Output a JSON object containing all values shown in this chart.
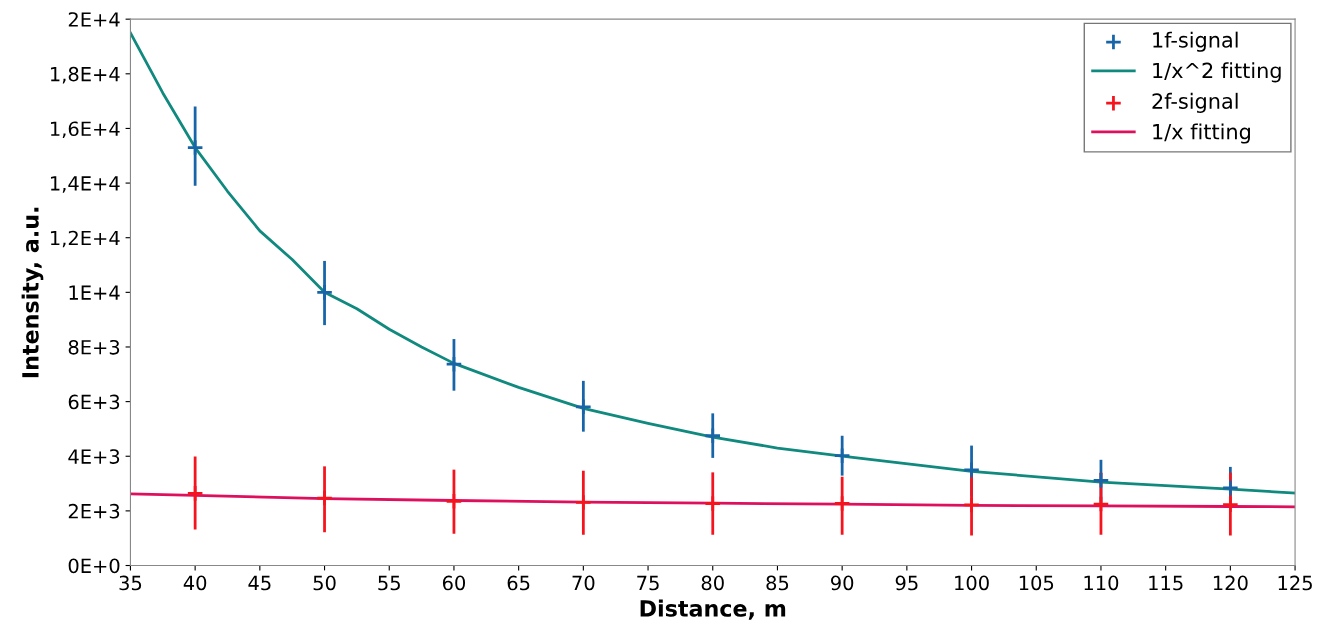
{
  "chart_data": {
    "type": "scatter",
    "xlabel": "Distance, m",
    "ylabel": "Intensity, a.u.",
    "xlim": [
      35,
      125
    ],
    "xticks": [
      35,
      40,
      45,
      50,
      55,
      60,
      65,
      70,
      75,
      80,
      85,
      90,
      95,
      100,
      105,
      110,
      115,
      120,
      125
    ],
    "ylim": [
      0,
      20000
    ],
    "yticks": [
      {
        "value": 0,
        "label": "0E+0"
      },
      {
        "value": 2000,
        "label": "2E+3"
      },
      {
        "value": 4000,
        "label": "4E+3"
      },
      {
        "value": 6000,
        "label": "6E+3"
      },
      {
        "value": 8000,
        "label": "8E+3"
      },
      {
        "value": 10000,
        "label": "1E+4"
      },
      {
        "value": 12000,
        "label": "1,2E+4"
      },
      {
        "value": 14000,
        "label": "1,4E+4"
      },
      {
        "value": 16000,
        "label": "1,6E+4"
      },
      {
        "value": 18000,
        "label": "1,8E+4"
      },
      {
        "value": 20000,
        "label": "2E+4"
      }
    ],
    "grid": false,
    "legend": "top right",
    "series": [
      {
        "name": "1f-signal",
        "marker": "cross",
        "color": "#1765a8",
        "x": [
          40,
          50,
          60,
          70,
          80,
          90,
          100,
          110,
          120
        ],
        "values": [
          15300,
          10000,
          7370,
          5810,
          4750,
          4020,
          3500,
          3120,
          2840
        ],
        "errors": [
          [
            13900,
            16800
          ],
          [
            8800,
            11150
          ],
          [
            6400,
            8290
          ],
          [
            4900,
            6760
          ],
          [
            3940,
            5570
          ],
          [
            3290,
            4750
          ],
          [
            2520,
            4390
          ],
          [
            2300,
            3870
          ],
          [
            2100,
            3610
          ]
        ]
      },
      {
        "name": "1/x^2 fitting",
        "type": "line",
        "marker": "none",
        "color": "#10897f",
        "x": [
          35,
          37.5,
          40,
          42.5,
          45,
          47.5,
          50,
          52.5,
          55,
          57.5,
          60,
          65,
          70,
          75,
          80,
          85,
          90,
          100,
          110,
          120,
          125
        ],
        "values": [
          19500,
          17300,
          15300,
          13700,
          12250,
          11200,
          10000,
          9400,
          8650,
          8000,
          7400,
          6520,
          5750,
          5200,
          4700,
          4300,
          4000,
          3450,
          3050,
          2800,
          2650
        ]
      },
      {
        "name": "2f-signal",
        "marker": "cross",
        "color": "#f5141e",
        "x": [
          40,
          50,
          60,
          70,
          80,
          90,
          100,
          110,
          120
        ],
        "values": [
          2640,
          2470,
          2350,
          2310,
          2270,
          2270,
          2220,
          2250,
          2230
        ],
        "errors": [
          [
            1320,
            3990
          ],
          [
            1220,
            3630
          ],
          [
            1160,
            3510
          ],
          [
            1130,
            3470
          ],
          [
            1130,
            3410
          ],
          [
            1130,
            3250
          ],
          [
            1100,
            3400
          ],
          [
            1130,
            3400
          ],
          [
            1100,
            3400
          ]
        ]
      },
      {
        "name": "1/x fitting",
        "type": "line",
        "marker": "none",
        "color": "#de105e",
        "x": [
          35,
          40,
          50,
          60,
          70,
          80,
          90,
          100,
          110,
          120,
          125
        ],
        "values": [
          2620,
          2570,
          2450,
          2380,
          2320,
          2280,
          2250,
          2200,
          2180,
          2160,
          2150
        ]
      }
    ]
  }
}
